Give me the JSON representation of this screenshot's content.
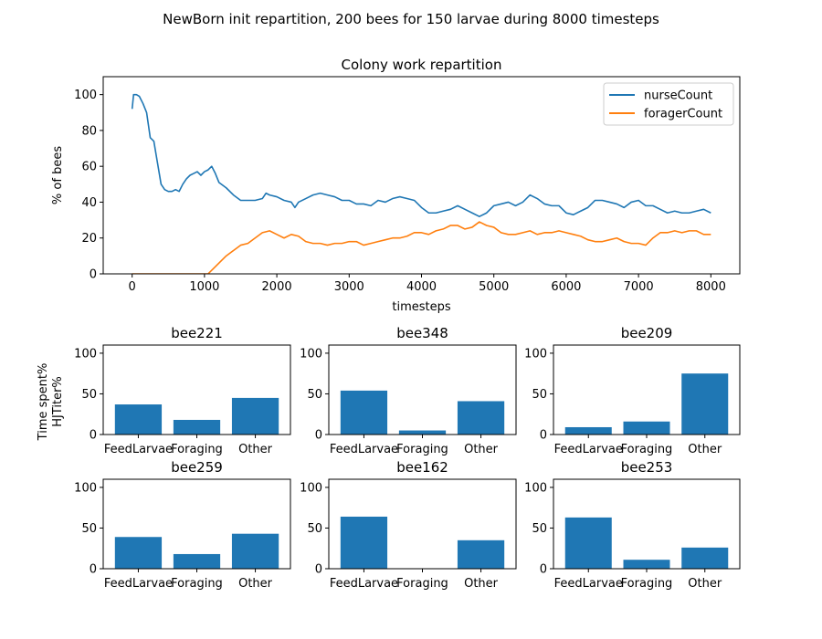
{
  "figure": {
    "suptitle": "NewBorn init repartition, 200 bees for 150 larvae during 8000 timesteps",
    "shared_ylabel_lines": [
      "Time spent%",
      "HJTiter%"
    ]
  },
  "colors": {
    "series_blue": "#1f77b4",
    "series_orange": "#ff7f0e"
  },
  "chart_data": [
    {
      "id": "main",
      "type": "line",
      "title": "Colony work repartition",
      "xlabel": "timesteps",
      "ylabel": "% of bees",
      "xlim": [
        -400,
        8400
      ],
      "ylim": [
        0,
        110
      ],
      "xticks": [
        0,
        1000,
        2000,
        3000,
        4000,
        5000,
        6000,
        7000,
        8000
      ],
      "yticks": [
        0,
        20,
        40,
        60,
        80,
        100
      ],
      "legend_position": "top-right",
      "series": [
        {
          "name": "nurseCount",
          "color": "#1f77b4",
          "x": [
            0,
            20,
            60,
            100,
            150,
            200,
            250,
            300,
            350,
            400,
            450,
            500,
            550,
            600,
            650,
            700,
            750,
            800,
            850,
            900,
            950,
            1000,
            1050,
            1100,
            1150,
            1200,
            1300,
            1400,
            1500,
            1600,
            1700,
            1800,
            1850,
            1900,
            2000,
            2100,
            2200,
            2250,
            2300,
            2400,
            2500,
            2600,
            2700,
            2800,
            2900,
            3000,
            3100,
            3200,
            3300,
            3400,
            3500,
            3600,
            3700,
            3800,
            3900,
            4000,
            4100,
            4200,
            4300,
            4400,
            4500,
            4600,
            4700,
            4800,
            4900,
            5000,
            5100,
            5200,
            5300,
            5400,
            5500,
            5600,
            5700,
            5800,
            5900,
            6000,
            6100,
            6200,
            6300,
            6400,
            6500,
            6600,
            6700,
            6800,
            6900,
            7000,
            7100,
            7200,
            7300,
            7400,
            7500,
            7600,
            7700,
            7800,
            7900,
            8000
          ],
          "y": [
            92,
            100,
            100,
            99,
            95,
            90,
            76,
            74,
            62,
            50,
            47,
            46,
            46,
            47,
            46,
            50,
            53,
            55,
            56,
            57,
            55,
            57,
            58,
            60,
            56,
            51,
            48,
            44,
            41,
            41,
            41,
            42,
            45,
            44,
            43,
            41,
            40,
            37,
            40,
            42,
            44,
            45,
            44,
            43,
            41,
            41,
            39,
            39,
            38,
            41,
            40,
            42,
            43,
            42,
            41,
            37,
            34,
            34,
            35,
            36,
            38,
            36,
            34,
            32,
            34,
            38,
            39,
            40,
            38,
            40,
            44,
            42,
            39,
            38,
            38,
            34,
            33,
            35,
            37,
            41,
            41,
            40,
            39,
            37,
            40,
            41,
            38,
            38,
            36,
            34,
            35,
            34,
            34,
            35,
            36,
            34
          ]
        },
        {
          "name": "foragerCount",
          "color": "#ff7f0e",
          "x": [
            0,
            200,
            400,
            600,
            800,
            1000,
            1050,
            1100,
            1200,
            1300,
            1400,
            1500,
            1600,
            1700,
            1800,
            1900,
            2000,
            2100,
            2200,
            2300,
            2400,
            2500,
            2600,
            2700,
            2800,
            2900,
            3000,
            3100,
            3200,
            3300,
            3400,
            3500,
            3600,
            3700,
            3800,
            3900,
            4000,
            4100,
            4200,
            4300,
            4400,
            4500,
            4600,
            4700,
            4800,
            4900,
            5000,
            5100,
            5200,
            5300,
            5400,
            5500,
            5600,
            5700,
            5800,
            5900,
            6000,
            6100,
            6200,
            6300,
            6400,
            6500,
            6600,
            6700,
            6800,
            6900,
            7000,
            7100,
            7200,
            7300,
            7400,
            7500,
            7600,
            7700,
            7800,
            7900,
            8000
          ],
          "y": [
            0,
            0,
            0,
            0,
            0,
            0,
            0,
            2,
            6,
            10,
            13,
            16,
            17,
            20,
            23,
            24,
            22,
            20,
            22,
            21,
            18,
            17,
            17,
            16,
            17,
            17,
            18,
            18,
            16,
            17,
            18,
            19,
            20,
            20,
            21,
            23,
            23,
            22,
            24,
            25,
            27,
            27,
            25,
            26,
            29,
            27,
            26,
            23,
            22,
            22,
            23,
            24,
            22,
            23,
            23,
            24,
            23,
            22,
            21,
            19,
            18,
            18,
            19,
            20,
            18,
            17,
            17,
            16,
            20,
            23,
            23,
            24,
            23,
            24,
            24,
            22,
            22
          ]
        }
      ]
    },
    {
      "id": "bee221",
      "type": "bar",
      "title": "bee221",
      "categories": [
        "FeedLarvae",
        "Foraging",
        "Other"
      ],
      "values": [
        37,
        18,
        45
      ],
      "ylim": [
        0,
        110
      ],
      "yticks": [
        0,
        50,
        100
      ],
      "color": "#1f77b4"
    },
    {
      "id": "bee348",
      "type": "bar",
      "title": "bee348",
      "categories": [
        "FeedLarvae",
        "Foraging",
        "Other"
      ],
      "values": [
        54,
        5,
        41
      ],
      "ylim": [
        0,
        110
      ],
      "yticks": [
        0,
        50,
        100
      ],
      "color": "#1f77b4"
    },
    {
      "id": "bee209",
      "type": "bar",
      "title": "bee209",
      "categories": [
        "FeedLarvae",
        "Foraging",
        "Other"
      ],
      "values": [
        9,
        16,
        75
      ],
      "ylim": [
        0,
        110
      ],
      "yticks": [
        0,
        50,
        100
      ],
      "color": "#1f77b4"
    },
    {
      "id": "bee259",
      "type": "bar",
      "title": "bee259",
      "categories": [
        "FeedLarvae",
        "Foraging",
        "Other"
      ],
      "values": [
        39,
        18,
        43
      ],
      "ylim": [
        0,
        110
      ],
      "yticks": [
        0,
        50,
        100
      ],
      "color": "#1f77b4"
    },
    {
      "id": "bee162",
      "type": "bar",
      "title": "bee162",
      "categories": [
        "FeedLarvae",
        "Foraging",
        "Other"
      ],
      "values": [
        64,
        0,
        35
      ],
      "ylim": [
        0,
        110
      ],
      "yticks": [
        0,
        50,
        100
      ],
      "color": "#1f77b4"
    },
    {
      "id": "bee253",
      "type": "bar",
      "title": "bee253",
      "categories": [
        "FeedLarvae",
        "Foraging",
        "Other"
      ],
      "values": [
        63,
        11,
        26
      ],
      "ylim": [
        0,
        110
      ],
      "yticks": [
        0,
        50,
        100
      ],
      "color": "#1f77b4"
    }
  ]
}
